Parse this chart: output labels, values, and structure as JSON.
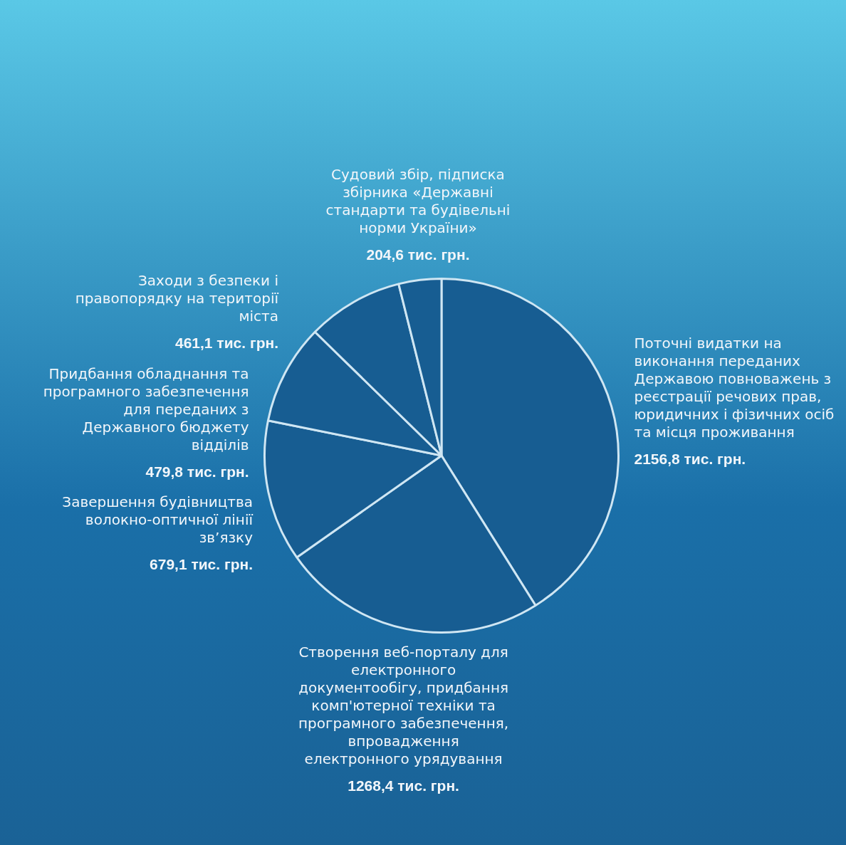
{
  "chart_data": {
    "type": "pie",
    "categories": [
      "Поточні видатки на виконання переданих Державою повноважень з реєстрації речових прав, юридичних і фізичних осіб та місця проживання",
      "Створення веб-порталу для електронного документообігу, придбання комп'ютерної техніки та програмного забезпечення, впровадження електронного урядування",
      "Завершення будівництва волокно-оптичної лінії зв’язку",
      "Придбання обладнання та програмного забезпечення для переданих з Державного бюджету відділів",
      "Заходи з безпеки і правопорядку на території міста",
      "Судовий збір, підписка збірника «Державні стандарти та будівельні норми України»"
    ],
    "values": [
      2156.8,
      1268.4,
      679.1,
      479.8,
      461.1,
      204.6
    ],
    "value_labels": [
      "2156,8 тис. грн.",
      "1268,4 тис. грн.",
      "679,1 тис. грн.",
      "479,8 тис. грн.",
      "461,1 тис. грн.",
      "204,6 тис. грн."
    ],
    "colors": [
      "#175d92",
      "#175d92",
      "#175d92",
      "#175d92",
      "#175d92",
      "#175d92"
    ]
  }
}
